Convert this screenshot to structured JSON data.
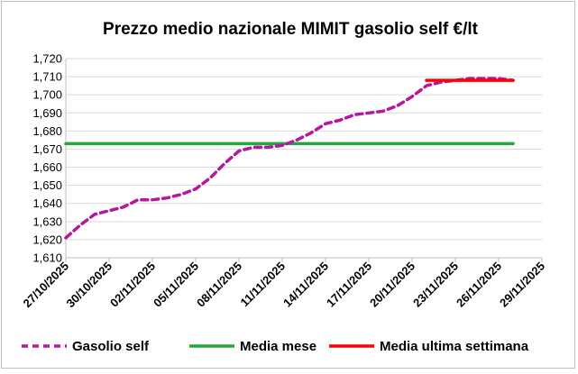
{
  "chart_data": {
    "type": "line",
    "title": "Prezzo medio nazionale MIMIT gasolio self €/lt",
    "xlabel": "",
    "ylabel": "",
    "ylim": [
      1.61,
      1.72
    ],
    "yticks": [
      "1,610",
      "1,620",
      "1,630",
      "1,640",
      "1,650",
      "1,660",
      "1,670",
      "1,680",
      "1,690",
      "1,700",
      "1,710",
      "1,720"
    ],
    "xticks": [
      "27/10/2025",
      "30/10/2025",
      "02/11/2025",
      "05/11/2025",
      "08/11/2025",
      "11/11/2025",
      "14/11/2025",
      "17/11/2025",
      "20/11/2025",
      "23/11/2025",
      "26/11/2025",
      "29/11/2025"
    ],
    "grid": "horizontal",
    "legend_position": "bottom",
    "series": [
      {
        "name": "Gasolio self",
        "color": "#b5179e",
        "style": "dashed",
        "x": [
          "27/10/2025",
          "28/10/2025",
          "29/10/2025",
          "30/10/2025",
          "31/10/2025",
          "01/11/2025",
          "02/11/2025",
          "03/11/2025",
          "04/11/2025",
          "05/11/2025",
          "06/11/2025",
          "07/11/2025",
          "08/11/2025",
          "09/11/2025",
          "10/11/2025",
          "11/11/2025",
          "12/11/2025",
          "13/11/2025",
          "14/11/2025",
          "15/11/2025",
          "16/11/2025",
          "17/11/2025",
          "18/11/2025",
          "19/11/2025",
          "20/11/2025",
          "21/11/2025",
          "22/11/2025",
          "23/11/2025",
          "24/11/2025",
          "25/11/2025",
          "26/11/2025",
          "27/11/2025"
        ],
        "values": [
          1.621,
          1.628,
          1.634,
          1.636,
          1.638,
          1.642,
          1.642,
          1.643,
          1.645,
          1.648,
          1.654,
          1.662,
          1.669,
          1.671,
          1.671,
          1.672,
          1.675,
          1.679,
          1.684,
          1.686,
          1.689,
          1.69,
          1.691,
          1.694,
          1.699,
          1.705,
          1.707,
          1.708,
          1.709,
          1.709,
          1.709,
          1.708
        ]
      },
      {
        "name": "Media mese",
        "color": "#22a83a",
        "style": "solid",
        "x": [
          "27/10/2025",
          "27/11/2025"
        ],
        "values": [
          1.673,
          1.673
        ]
      },
      {
        "name": "Media ultima settimana",
        "color": "#ff0000",
        "style": "solid",
        "x": [
          "21/11/2025",
          "27/11/2025"
        ],
        "values": [
          1.708,
          1.708
        ]
      }
    ]
  }
}
